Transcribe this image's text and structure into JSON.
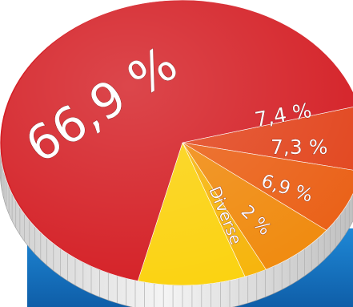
{
  "chart_data": {
    "type": "pie",
    "style": "3d-pie",
    "title": "",
    "slices": [
      {
        "label": "66,9 %",
        "value": 66.9,
        "color": "#d41e24"
      },
      {
        "label": "7,4 %",
        "value": 7.4,
        "color": "#e2451d"
      },
      {
        "label": "7,3 %",
        "value": 7.3,
        "color": "#ea6016"
      },
      {
        "label": "6,9 %",
        "value": 6.9,
        "color": "#f08a0e"
      },
      {
        "label": "2 %",
        "value": 2.0,
        "color": "#f6b40a"
      },
      {
        "label": "Diverse",
        "value": 9.5,
        "color": "#fbd20e"
      }
    ],
    "base_color": "#1976c9"
  }
}
